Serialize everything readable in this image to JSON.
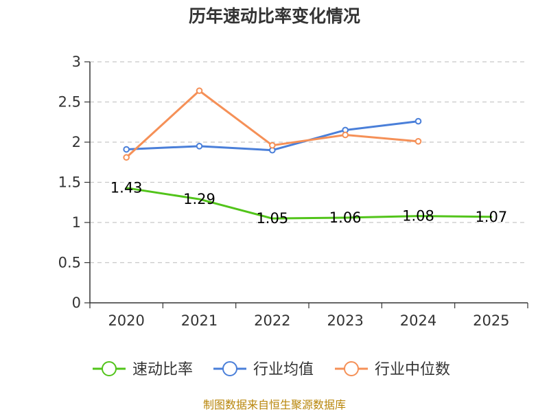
{
  "chart_data": {
    "type": "line",
    "title": "历年速动比率变化情况",
    "categories": [
      "2020",
      "2021",
      "2022",
      "2023",
      "2024",
      "2025"
    ],
    "y_ticks": [
      "0",
      "0.5",
      "1",
      "1.5",
      "2",
      "2.5",
      "3"
    ],
    "ylim": [
      0,
      3
    ],
    "grid": "horizontal dashed",
    "legend_position": "bottom",
    "series": [
      {
        "name": "速动比率",
        "color": "#52c41a",
        "values": [
          1.43,
          1.29,
          1.05,
          1.06,
          1.08,
          1.07
        ],
        "labels": [
          "1.43",
          "1.29",
          "1.05",
          "1.06",
          "1.08",
          "1.07"
        ]
      },
      {
        "name": "行业均值",
        "color": "#4a7fd9",
        "values": [
          1.91,
          1.95,
          1.9,
          2.15,
          2.26,
          null
        ]
      },
      {
        "name": "行业中位数",
        "color": "#f59057",
        "values": [
          1.81,
          2.64,
          1.96,
          2.09,
          2.01,
          null
        ]
      }
    ]
  },
  "footer": {
    "source": "制图数据来自恒生聚源数据库"
  }
}
